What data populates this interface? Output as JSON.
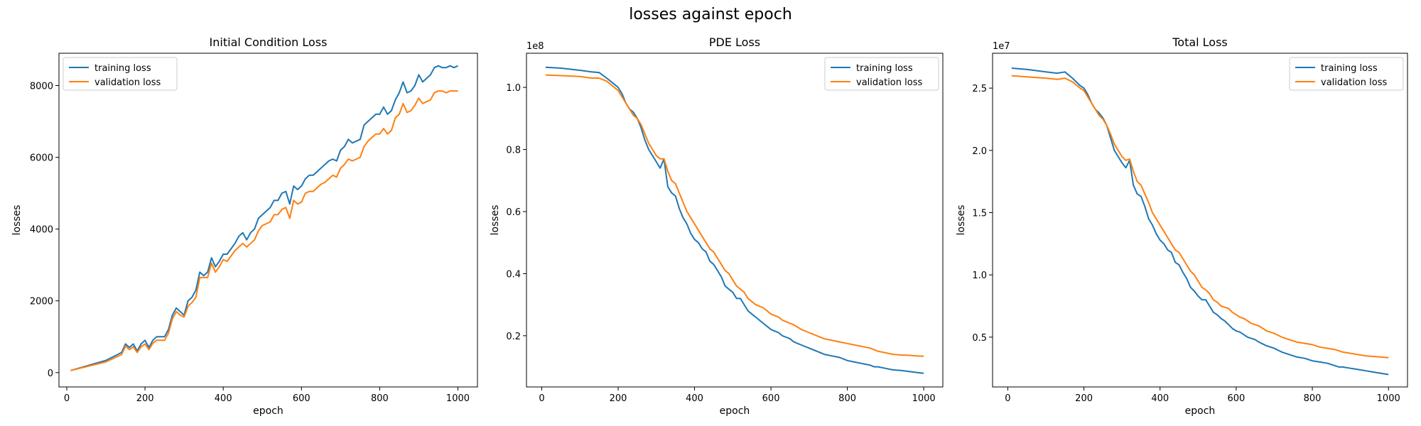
{
  "figure_title": "losses against epoch",
  "chart_data": [
    {
      "type": "line",
      "title": "Initial Condition Loss",
      "xlabel": "epoch",
      "ylabel": "losses",
      "xlim": [
        -20,
        1050
      ],
      "ylim": [
        -400,
        8900
      ],
      "xticks": [
        0,
        200,
        400,
        600,
        800,
        1000
      ],
      "yticks": [
        0,
        2000,
        4000,
        6000,
        8000
      ],
      "ytick_labels": [
        "0",
        "2000",
        "4000",
        "6000",
        "8000"
      ],
      "scale_label": "",
      "grid": false,
      "legend_position": "top-left",
      "x": [
        10,
        100,
        140,
        150,
        160,
        170,
        180,
        190,
        200,
        210,
        220,
        230,
        250,
        260,
        270,
        280,
        290,
        300,
        310,
        320,
        330,
        340,
        350,
        360,
        370,
        380,
        390,
        400,
        410,
        430,
        440,
        450,
        460,
        470,
        480,
        490,
        500,
        510,
        520,
        530,
        540,
        550,
        560,
        570,
        580,
        590,
        600,
        610,
        620,
        630,
        640,
        650,
        660,
        670,
        680,
        690,
        700,
        710,
        720,
        730,
        740,
        750,
        760,
        770,
        780,
        790,
        800,
        810,
        820,
        830,
        840,
        850,
        860,
        870,
        880,
        890,
        900,
        910,
        920,
        930,
        940,
        950,
        960,
        970,
        980,
        990,
        1000
      ],
      "series": [
        {
          "name": "training loss",
          "color": "#1f77b4",
          "values": [
            60,
            340,
            560,
            800,
            700,
            800,
            600,
            800,
            900,
            700,
            900,
            1000,
            1000,
            1200,
            1600,
            1800,
            1700,
            1600,
            2000,
            2100,
            2300,
            2800,
            2700,
            2800,
            3200,
            2950,
            3100,
            3300,
            3300,
            3600,
            3800,
            3900,
            3700,
            3900,
            4000,
            4300,
            4400,
            4500,
            4600,
            4800,
            4800,
            5000,
            5050,
            4700,
            5200,
            5100,
            5200,
            5400,
            5500,
            5500,
            5600,
            5700,
            5800,
            5900,
            5950,
            5900,
            6200,
            6300,
            6500,
            6400,
            6450,
            6500,
            6900,
            7000,
            7100,
            7200,
            7200,
            7400,
            7200,
            7300,
            7600,
            7800,
            8100,
            7800,
            7850,
            8000,
            8300,
            8100,
            8200,
            8300,
            8500,
            8550,
            8500,
            8500,
            8550,
            8500,
            8550
          ]
        },
        {
          "name": "validation loss",
          "color": "#ff7f0e",
          "values": [
            60,
            300,
            500,
            740,
            640,
            720,
            560,
            720,
            800,
            640,
            820,
            900,
            900,
            1100,
            1500,
            1700,
            1600,
            1550,
            1850,
            1950,
            2100,
            2650,
            2650,
            2650,
            3050,
            2800,
            2950,
            3150,
            3100,
            3400,
            3500,
            3600,
            3500,
            3600,
            3700,
            3950,
            4100,
            4150,
            4200,
            4400,
            4400,
            4550,
            4600,
            4300,
            4800,
            4700,
            4750,
            5000,
            5050,
            5050,
            5150,
            5250,
            5300,
            5400,
            5500,
            5450,
            5700,
            5800,
            5950,
            5900,
            5950,
            6000,
            6300,
            6450,
            6550,
            6650,
            6650,
            6800,
            6650,
            6750,
            7100,
            7200,
            7500,
            7250,
            7300,
            7450,
            7650,
            7500,
            7550,
            7600,
            7800,
            7850,
            7850,
            7800,
            7850,
            7850,
            7850
          ]
        }
      ]
    },
    {
      "type": "line",
      "title": "PDE Loss",
      "xlabel": "epoch",
      "ylabel": "losses",
      "xlim": [
        -40,
        1050
      ],
      "ylim": [
        0.035,
        1.11
      ],
      "xticks": [
        0,
        200,
        400,
        600,
        800,
        1000
      ],
      "yticks": [
        0.2,
        0.4,
        0.6,
        0.8,
        1.0
      ],
      "ytick_labels": [
        "0.2",
        "0.4",
        "0.6",
        "0.8",
        "1.0"
      ],
      "scale_label": "1e8",
      "grid": false,
      "legend_position": "top-right",
      "x": [
        10,
        50,
        100,
        130,
        150,
        170,
        190,
        200,
        210,
        220,
        230,
        240,
        250,
        260,
        270,
        280,
        290,
        300,
        310,
        320,
        330,
        340,
        350,
        360,
        370,
        380,
        390,
        400,
        410,
        420,
        430,
        440,
        450,
        460,
        470,
        480,
        490,
        500,
        510,
        520,
        530,
        540,
        550,
        560,
        570,
        580,
        590,
        600,
        610,
        620,
        630,
        640,
        650,
        660,
        680,
        700,
        720,
        740,
        760,
        780,
        800,
        820,
        840,
        860,
        870,
        880,
        900,
        920,
        940,
        960,
        980,
        1000
      ],
      "series": [
        {
          "name": "training loss",
          "color": "#1f77b4",
          "values": [
            1.065,
            1.062,
            1.055,
            1.05,
            1.048,
            1.03,
            1.01,
            1.0,
            0.98,
            0.95,
            0.93,
            0.92,
            0.9,
            0.87,
            0.83,
            0.8,
            0.78,
            0.76,
            0.74,
            0.77,
            0.68,
            0.66,
            0.65,
            0.61,
            0.58,
            0.56,
            0.53,
            0.51,
            0.5,
            0.48,
            0.47,
            0.44,
            0.43,
            0.41,
            0.39,
            0.36,
            0.35,
            0.34,
            0.32,
            0.32,
            0.3,
            0.28,
            0.27,
            0.26,
            0.25,
            0.24,
            0.23,
            0.22,
            0.215,
            0.21,
            0.2,
            0.195,
            0.19,
            0.18,
            0.17,
            0.16,
            0.15,
            0.14,
            0.135,
            0.13,
            0.12,
            0.115,
            0.11,
            0.105,
            0.1,
            0.1,
            0.095,
            0.09,
            0.088,
            0.085,
            0.082,
            0.079
          ]
        },
        {
          "name": "validation loss",
          "color": "#ff7f0e",
          "values": [
            1.04,
            1.038,
            1.035,
            1.03,
            1.03,
            1.02,
            1.0,
            0.99,
            0.97,
            0.95,
            0.93,
            0.91,
            0.9,
            0.88,
            0.85,
            0.82,
            0.8,
            0.78,
            0.77,
            0.77,
            0.73,
            0.7,
            0.69,
            0.66,
            0.63,
            0.6,
            0.58,
            0.56,
            0.54,
            0.52,
            0.5,
            0.48,
            0.47,
            0.45,
            0.43,
            0.41,
            0.4,
            0.38,
            0.36,
            0.35,
            0.34,
            0.32,
            0.31,
            0.3,
            0.295,
            0.29,
            0.28,
            0.27,
            0.265,
            0.26,
            0.25,
            0.245,
            0.24,
            0.235,
            0.22,
            0.21,
            0.2,
            0.19,
            0.185,
            0.18,
            0.175,
            0.17,
            0.165,
            0.16,
            0.155,
            0.15,
            0.145,
            0.14,
            0.138,
            0.137,
            0.135,
            0.134
          ]
        }
      ]
    },
    {
      "type": "line",
      "title": "Total Loss",
      "xlabel": "epoch",
      "ylabel": "losses",
      "xlim": [
        -40,
        1050
      ],
      "ylim": [
        0.1,
        2.78
      ],
      "xticks": [
        0,
        200,
        400,
        600,
        800,
        1000
      ],
      "yticks": [
        0.5,
        1.0,
        1.5,
        2.0,
        2.5
      ],
      "ytick_labels": [
        "0.5",
        "1.0",
        "1.5",
        "2.0",
        "2.5"
      ],
      "scale_label": "1e7",
      "grid": false,
      "legend_position": "top-right",
      "x": [
        10,
        50,
        100,
        130,
        150,
        170,
        190,
        200,
        210,
        220,
        230,
        240,
        250,
        260,
        270,
        280,
        290,
        300,
        310,
        320,
        330,
        340,
        350,
        360,
        370,
        380,
        390,
        400,
        410,
        420,
        430,
        440,
        450,
        460,
        470,
        480,
        490,
        500,
        510,
        520,
        530,
        540,
        550,
        560,
        570,
        580,
        590,
        600,
        610,
        620,
        630,
        640,
        650,
        660,
        680,
        700,
        720,
        740,
        760,
        780,
        800,
        820,
        840,
        860,
        870,
        880,
        900,
        920,
        940,
        960,
        980,
        1000
      ],
      "series": [
        {
          "name": "training loss",
          "color": "#1f77b4",
          "values": [
            2.66,
            2.65,
            2.63,
            2.62,
            2.63,
            2.58,
            2.52,
            2.5,
            2.45,
            2.38,
            2.33,
            2.3,
            2.26,
            2.2,
            2.1,
            2.0,
            1.95,
            1.9,
            1.86,
            1.92,
            1.72,
            1.65,
            1.63,
            1.55,
            1.45,
            1.4,
            1.33,
            1.28,
            1.25,
            1.2,
            1.18,
            1.1,
            1.08,
            1.02,
            0.97,
            0.9,
            0.87,
            0.83,
            0.8,
            0.8,
            0.75,
            0.7,
            0.68,
            0.65,
            0.63,
            0.6,
            0.57,
            0.55,
            0.54,
            0.52,
            0.5,
            0.49,
            0.48,
            0.46,
            0.43,
            0.41,
            0.38,
            0.36,
            0.34,
            0.33,
            0.31,
            0.3,
            0.29,
            0.27,
            0.26,
            0.26,
            0.25,
            0.24,
            0.23,
            0.22,
            0.21,
            0.2
          ]
        },
        {
          "name": "validation loss",
          "color": "#ff7f0e",
          "values": [
            2.6,
            2.59,
            2.58,
            2.57,
            2.58,
            2.55,
            2.5,
            2.48,
            2.43,
            2.38,
            2.33,
            2.28,
            2.25,
            2.2,
            2.13,
            2.05,
            2.0,
            1.95,
            1.92,
            1.93,
            1.83,
            1.75,
            1.72,
            1.65,
            1.58,
            1.5,
            1.45,
            1.4,
            1.35,
            1.3,
            1.25,
            1.2,
            1.18,
            1.13,
            1.08,
            1.03,
            1.0,
            0.95,
            0.9,
            0.88,
            0.85,
            0.8,
            0.78,
            0.75,
            0.74,
            0.73,
            0.7,
            0.68,
            0.66,
            0.65,
            0.63,
            0.61,
            0.6,
            0.59,
            0.55,
            0.53,
            0.5,
            0.48,
            0.46,
            0.45,
            0.44,
            0.42,
            0.41,
            0.4,
            0.39,
            0.38,
            0.37,
            0.36,
            0.35,
            0.345,
            0.34,
            0.335
          ]
        }
      ]
    }
  ]
}
